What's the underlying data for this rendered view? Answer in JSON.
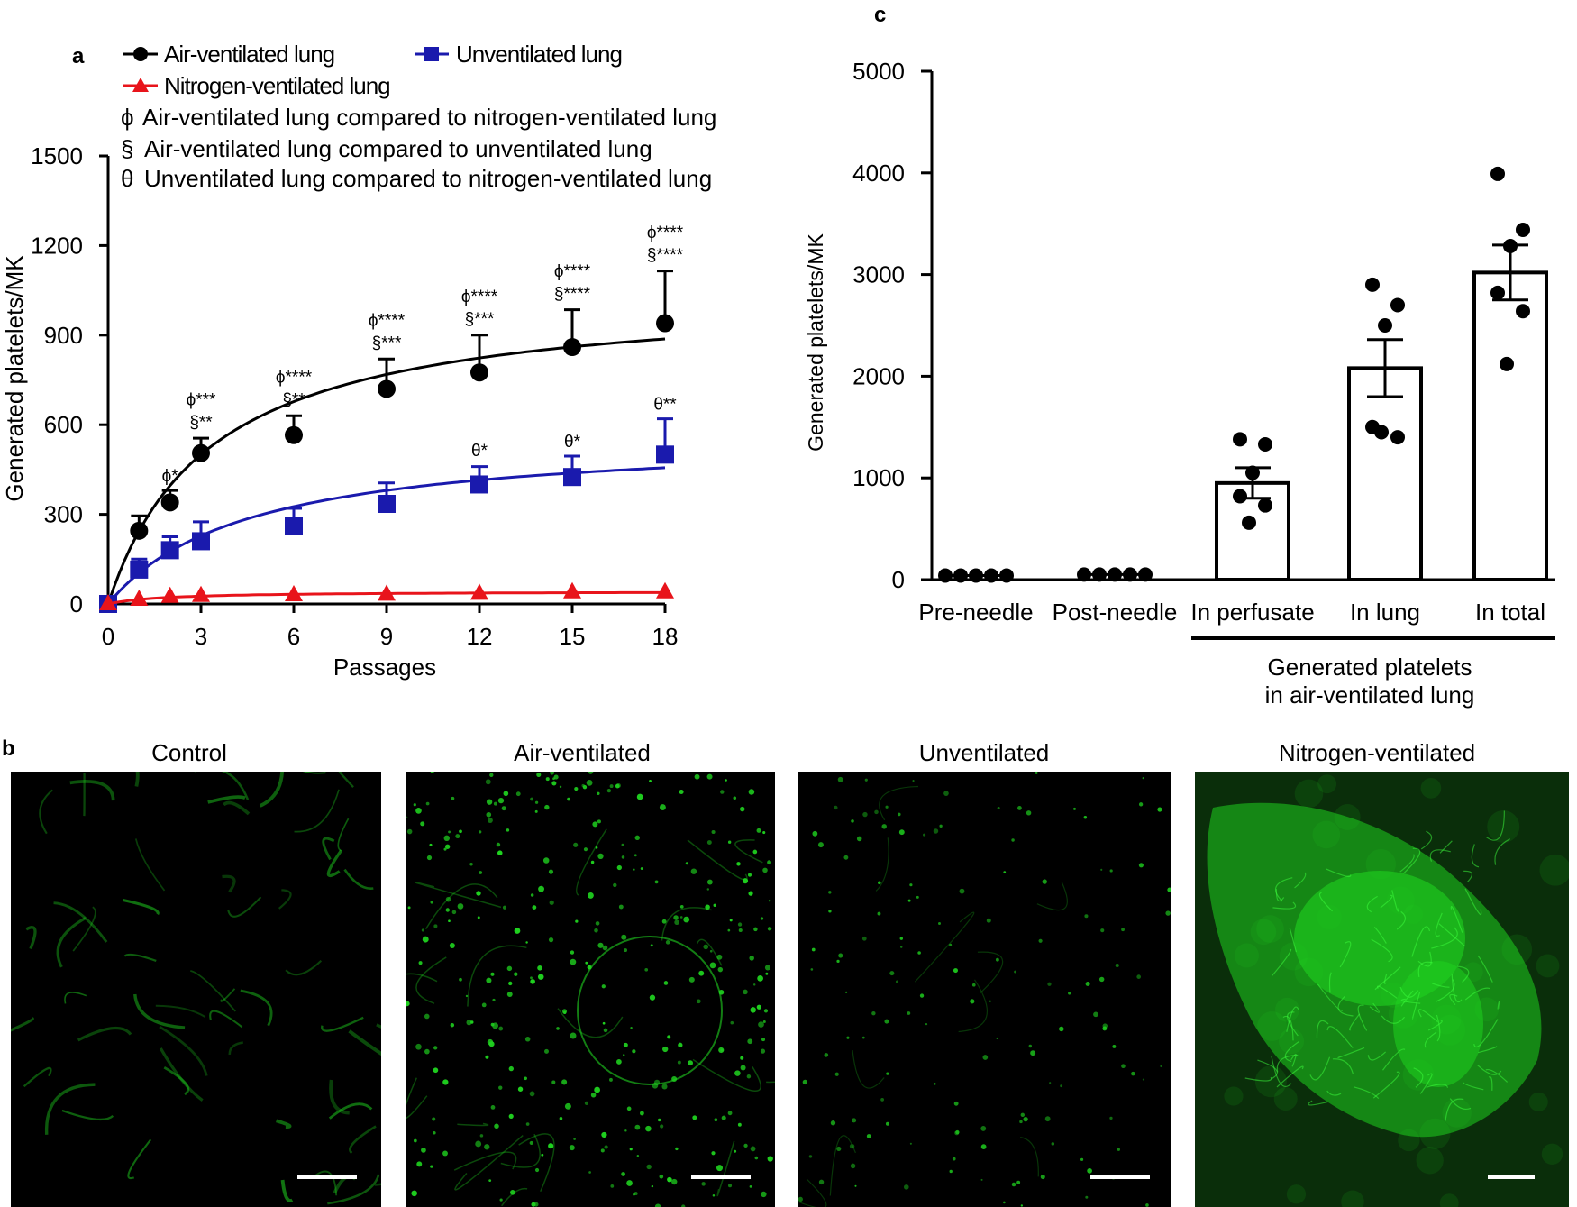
{
  "panel_labels": {
    "a": "a",
    "b": "b",
    "c": "c"
  },
  "chart_data": [
    {
      "type": "line",
      "panel": "a",
      "title": "",
      "xlabel": "Passages",
      "ylabel": "Generated platelets/MK",
      "xlim": [
        0,
        18
      ],
      "ylim": [
        0,
        1500
      ],
      "xticks": [
        0,
        3,
        6,
        9,
        12,
        15,
        18
      ],
      "yticks": [
        0,
        300,
        600,
        900,
        1200,
        1500
      ],
      "legend": [
        "Air-ventilated lung",
        "Unventilated lung",
        "Nitrogen-ventilated lung"
      ],
      "notes": [
        {
          "symbol": "ϕ",
          "text": "Air-ventilated lung compared to nitrogen-ventilated lung"
        },
        {
          "symbol": "§",
          "text": "Air-ventilated lung compared to unventilated lung"
        },
        {
          "symbol": "θ",
          "text": "Unventilated lung compared to nitrogen-ventilated lung"
        }
      ],
      "series": [
        {
          "name": "Air-ventilated lung",
          "color": "#000000",
          "marker": "circle",
          "x": [
            0,
            1,
            2,
            3,
            6,
            9,
            12,
            15,
            18
          ],
          "values": [
            0,
            245,
            340,
            505,
            565,
            720,
            775,
            860,
            940
          ],
          "err": [
            0,
            50,
            40,
            50,
            65,
            100,
            125,
            125,
            175
          ],
          "fit": {
            "vmax": 1050,
            "k": 3.3
          }
        },
        {
          "name": "Unventilated lung",
          "color": "#1a1aad",
          "marker": "square",
          "x": [
            0,
            1,
            2,
            3,
            6,
            9,
            12,
            15,
            18
          ],
          "values": [
            0,
            115,
            180,
            210,
            260,
            335,
            400,
            425,
            500
          ],
          "err": [
            0,
            35,
            45,
            65,
            60,
            70,
            60,
            70,
            120
          ],
          "fit": {
            "vmax": 570,
            "k": 4.5
          }
        },
        {
          "name": "Nitrogen-ventilated lung",
          "color": "#e8141b",
          "marker": "triangle",
          "x": [
            0,
            1,
            2,
            3,
            6,
            9,
            12,
            15,
            18
          ],
          "values": [
            0,
            15,
            25,
            28,
            30,
            32,
            35,
            40,
            40
          ],
          "err": [
            0,
            0,
            0,
            0,
            0,
            0,
            0,
            0,
            0
          ],
          "fit": {
            "vmax": 42,
            "k": 1.8
          }
        }
      ],
      "annotations": [
        {
          "x": 2,
          "y": 380,
          "lines": [
            "ϕ*"
          ]
        },
        {
          "x": 3,
          "y": 560,
          "lines": [
            "ϕ***",
            "§**"
          ]
        },
        {
          "x": 6,
          "y": 635,
          "lines": [
            "ϕ****",
            "§**"
          ]
        },
        {
          "x": 9,
          "y": 825,
          "lines": [
            "ϕ****",
            "§***"
          ]
        },
        {
          "x": 12,
          "y": 905,
          "lines": [
            "ϕ****",
            "§***"
          ]
        },
        {
          "x": 15,
          "y": 990,
          "lines": [
            "ϕ****",
            "§****"
          ]
        },
        {
          "x": 18,
          "y": 1120,
          "lines": [
            "ϕ****",
            "§****"
          ]
        },
        {
          "x": 12,
          "y": 465,
          "lines": [
            "θ*"
          ]
        },
        {
          "x": 15,
          "y": 495,
          "lines": [
            "θ*"
          ]
        },
        {
          "x": 18,
          "y": 620,
          "lines": [
            "θ**"
          ]
        }
      ]
    },
    {
      "type": "bar",
      "panel": "c",
      "title": "",
      "xlabel": "",
      "ylabel": "Generated platelets/MK",
      "ylim": [
        0,
        5000
      ],
      "yticks": [
        0,
        1000,
        2000,
        3000,
        4000,
        5000
      ],
      "categories": [
        "Pre-needle",
        "Post-needle",
        "In perfusate",
        "In lung",
        "In total"
      ],
      "values": [
        40,
        50,
        950,
        2080,
        3020
      ],
      "err": [
        0,
        0,
        150,
        280,
        270
      ],
      "points": [
        [
          40,
          40,
          40,
          40,
          40
        ],
        [
          50,
          50,
          50,
          50,
          50
        ],
        [
          1380,
          1330,
          1050,
          820,
          730,
          560
        ],
        [
          2900,
          2700,
          2500,
          1500,
          1400,
          1450
        ],
        [
          3990,
          3440,
          3280,
          2820,
          2640,
          2120
        ]
      ],
      "show_bar": [
        false,
        false,
        true,
        true,
        true
      ],
      "group_label": [
        "Generated platelets",
        "in air-ventilated lung"
      ]
    }
  ],
  "panel_b": {
    "titles": [
      "Control",
      "Air-ventilated",
      "Unventilated",
      "Nitrogen-ventilated"
    ],
    "color": "#1fd21f"
  }
}
